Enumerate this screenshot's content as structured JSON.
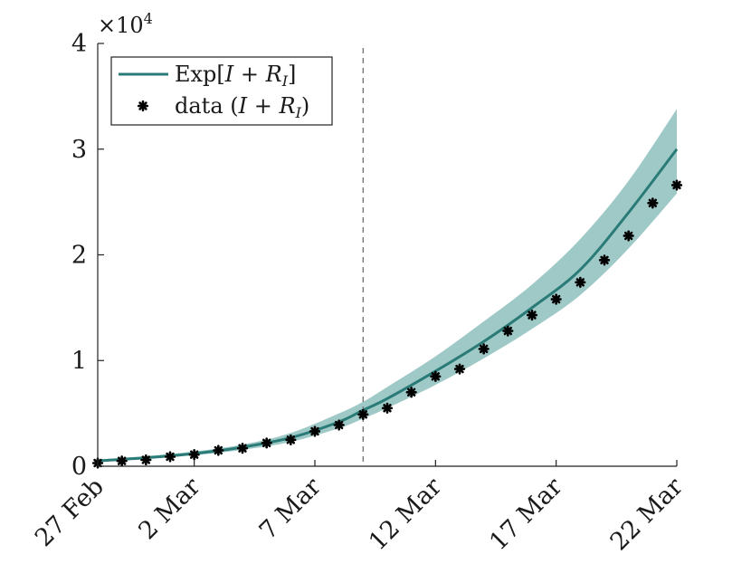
{
  "chart_data": {
    "type": "line",
    "title": "",
    "xlabel": "",
    "ylabel": "",
    "y_multiplier_label": "×10",
    "y_multiplier_exponent": "4",
    "ylim": [
      0,
      40000
    ],
    "xlim": [
      0,
      24
    ],
    "y_ticks": [
      {
        "value": 0,
        "label": "0"
      },
      {
        "value": 10000,
        "label": "1"
      },
      {
        "value": 20000,
        "label": "2"
      },
      {
        "value": 30000,
        "label": "3"
      },
      {
        "value": 40000,
        "label": "4"
      }
    ],
    "x_ticks": [
      {
        "value": 0,
        "label": "27 Feb"
      },
      {
        "value": 4,
        "label": "2 Mar"
      },
      {
        "value": 9,
        "label": "7 Mar"
      },
      {
        "value": 14,
        "label": "12 Mar"
      },
      {
        "value": 19,
        "label": "17 Mar"
      },
      {
        "value": 24,
        "label": "22 Mar"
      }
    ],
    "vline_x": 11,
    "series": [
      {
        "name": "Exp[I + R_I]",
        "kind": "line",
        "color": "#2a7b78",
        "x": [
          0,
          2,
          4,
          6,
          8,
          10,
          11,
          12,
          14,
          16,
          18,
          20,
          22,
          24
        ],
        "values": [
          500,
          800,
          1200,
          1800,
          2700,
          4200,
          5300,
          6400,
          9000,
          11800,
          15000,
          18600,
          24000,
          30000
        ]
      },
      {
        "name": "band",
        "kind": "band",
        "color": "#8dbfbc",
        "x": [
          0,
          2,
          4,
          6,
          8,
          10,
          11,
          12,
          14,
          16,
          18,
          20,
          22,
          24
        ],
        "lower": [
          450,
          700,
          1050,
          1550,
          2300,
          3600,
          4500,
          5500,
          7700,
          10200,
          13000,
          16200,
          20600,
          25800
        ],
        "upper": [
          650,
          950,
          1400,
          2050,
          3150,
          5000,
          6100,
          7500,
          10400,
          13700,
          17200,
          21500,
          27000,
          33800
        ]
      },
      {
        "name": "data (I + R_I)",
        "kind": "scatter",
        "color": "#000000",
        "x": [
          0,
          1,
          2,
          3,
          4,
          5,
          6,
          7,
          8,
          9,
          10,
          11,
          12,
          13,
          14,
          15,
          16,
          17,
          18,
          19,
          20,
          21,
          22,
          23,
          24
        ],
        "values": [
          300,
          500,
          600,
          900,
          1100,
          1500,
          1700,
          2200,
          2500,
          3300,
          3900,
          4900,
          5500,
          7000,
          8500,
          9200,
          11100,
          12800,
          14300,
          15800,
          17400,
          19500,
          21800,
          24900,
          26600
        ]
      }
    ],
    "legend": {
      "placement": "top-left",
      "entries": [
        {
          "label": "Exp[I + R_I]",
          "marker": "line"
        },
        {
          "label": "data (I + R_I)",
          "marker": "asterisk"
        }
      ]
    }
  },
  "legend_text": {
    "exp_prefix": "Exp[",
    "exp_I": "I",
    "exp_plus": " + ",
    "exp_R": "R",
    "exp_sub": "I",
    "exp_suffix": "]",
    "data_prefix": "data (",
    "data_I": "I",
    "data_plus": " + ",
    "data_R": "R",
    "data_sub": "I",
    "data_suffix": ")"
  }
}
